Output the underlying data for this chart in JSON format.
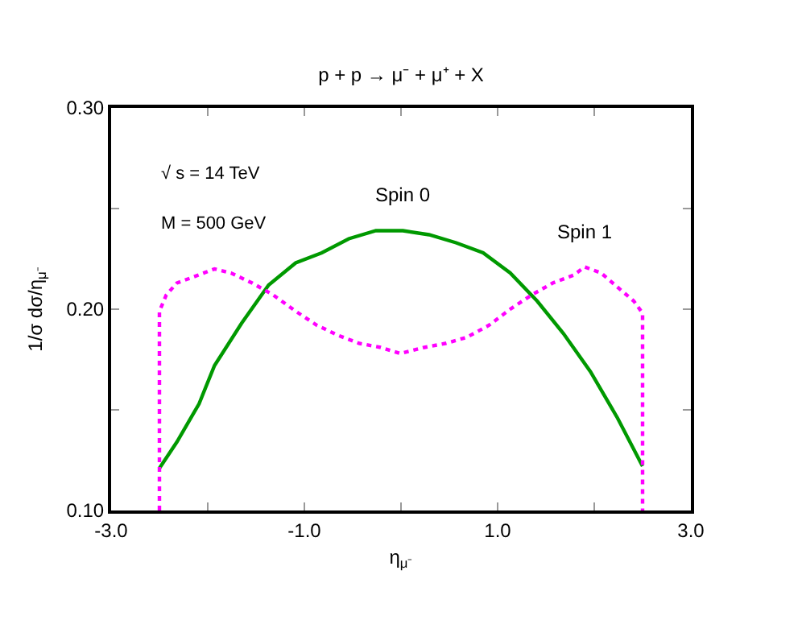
{
  "chart_data": {
    "type": "line",
    "title": "p + p → μ⁻ + μ⁺ + X",
    "xlabel": "η$_{μ⁻}$",
    "ylabel": "1/σ dσ/η$_{μ⁻}$",
    "annotations": [
      "√ s = 14 TeV",
      "M = 500 GeV"
    ],
    "xlim": [
      -3,
      3
    ],
    "ylim": [
      0.1,
      0.3
    ],
    "xticks": [
      {
        "value": -3,
        "label": "-3.0"
      },
      {
        "value": -2,
        "label": null
      },
      {
        "value": -1,
        "label": "-1.0"
      },
      {
        "value": 0,
        "label": null
      },
      {
        "value": 1,
        "label": "1.0"
      },
      {
        "value": 2,
        "label": null
      },
      {
        "value": 3,
        "label": "3.0"
      }
    ],
    "yticks": [
      {
        "value": 0.1,
        "label": "0.10"
      },
      {
        "value": 0.15,
        "label": null
      },
      {
        "value": 0.2,
        "label": "0.20"
      },
      {
        "value": 0.25,
        "label": null
      },
      {
        "value": 0.3,
        "label": "0.30"
      }
    ],
    "grid": false,
    "legend": false,
    "marker": "none",
    "series": [
      {
        "name": "Spin 0",
        "color": "#009900",
        "line_style": "solid",
        "x": [
          -2.5,
          -2.32,
          -2.09,
          -1.93,
          -1.65,
          -1.37,
          -1.09,
          -0.82,
          -0.54,
          -0.26,
          0.02,
          0.29,
          0.57,
          0.85,
          1.13,
          1.41,
          1.68,
          1.96,
          2.24,
          2.5
        ],
        "values": [
          0.121,
          0.134,
          0.153,
          0.172,
          0.193,
          0.212,
          0.223,
          0.228,
          0.235,
          0.239,
          0.239,
          0.237,
          0.233,
          0.228,
          0.218,
          0.204,
          0.188,
          0.169,
          0.146,
          0.122
        ]
      },
      {
        "name": "Spin 1",
        "color": "#ff00ff",
        "line_style": "dotted",
        "x": [
          -2.5,
          -2.5,
          -2.43,
          -2.32,
          -2.15,
          -1.93,
          -1.76,
          -1.54,
          -1.32,
          -1.09,
          -0.87,
          -0.65,
          -0.43,
          -0.21,
          -0.01,
          0.24,
          0.46,
          0.68,
          0.91,
          1.13,
          1.35,
          1.57,
          1.79,
          1.9,
          2.07,
          2.24,
          2.41,
          2.5,
          2.5
        ],
        "values": [
          0.1,
          0.199,
          0.207,
          0.213,
          0.216,
          0.22,
          0.218,
          0.213,
          0.207,
          0.199,
          0.192,
          0.187,
          0.183,
          0.181,
          0.178,
          0.181,
          0.183,
          0.186,
          0.192,
          0.2,
          0.207,
          0.213,
          0.217,
          0.221,
          0.218,
          0.211,
          0.204,
          0.198,
          0.1
        ]
      }
    ]
  }
}
